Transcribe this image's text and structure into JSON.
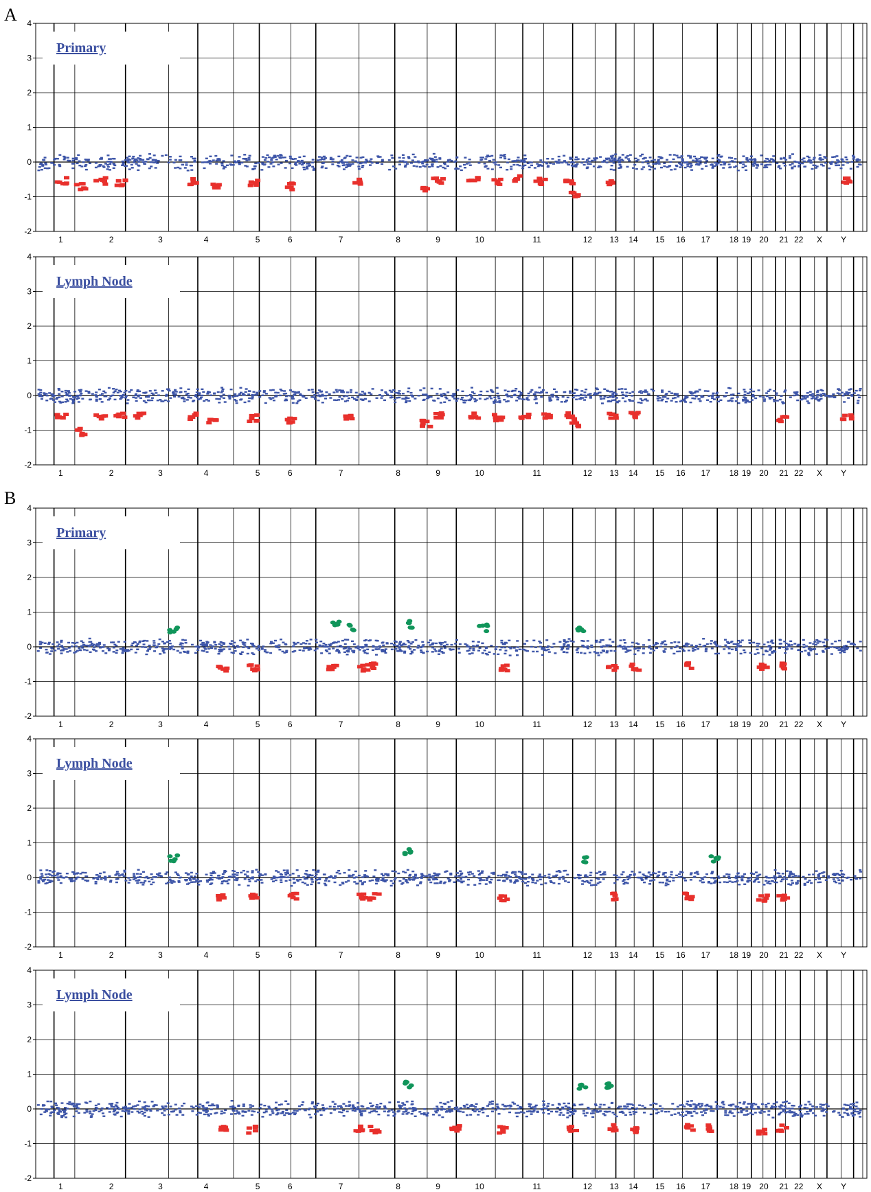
{
  "figure": {
    "panel_labels": [
      "A",
      "B"
    ]
  },
  "chromosomes": [
    "1",
    "2",
    "3",
    "4",
    "5",
    "6",
    "7",
    "8",
    "9",
    "10",
    "11",
    "12",
    "13",
    "14",
    "15",
    "16",
    "17",
    "18",
    "19",
    "20",
    "21",
    "22",
    "X",
    "Y"
  ],
  "colors": {
    "normal": "#3d55a8",
    "loss": "#e8302c",
    "gain": "#10955a",
    "axis": "#000000"
  },
  "chart_data": [
    {
      "type": "scatter",
      "panel": "A",
      "title": "Primary",
      "ylim": [
        -2,
        4
      ],
      "yticks": [
        -2,
        -1,
        0,
        1,
        2,
        3,
        4
      ],
      "x_categories": [
        "1",
        "2",
        "3",
        "4",
        "5",
        "6",
        "7",
        "8",
        "9",
        "10",
        "11",
        "12",
        "13",
        "14",
        "15",
        "16",
        "17",
        "18",
        "19",
        "20",
        "21",
        "22",
        "X",
        "Y"
      ],
      "grid": true,
      "losses": [
        {
          "chr": "1",
          "pos": 0.5,
          "value": -0.55
        },
        {
          "chr": "1",
          "pos": 0.9,
          "value": -0.7
        },
        {
          "chr": "2",
          "pos": 0.3,
          "value": -0.55
        },
        {
          "chr": "2",
          "pos": 0.7,
          "value": -0.6
        },
        {
          "chr": "4",
          "pos": 0.2,
          "value": -0.55
        },
        {
          "chr": "4",
          "pos": 0.7,
          "value": -0.65
        },
        {
          "chr": "5",
          "pos": 0.5,
          "value": -0.6
        },
        {
          "chr": "6",
          "pos": 0.4,
          "value": -0.7
        },
        {
          "chr": "7",
          "pos": 0.8,
          "value": -0.55
        },
        {
          "chr": "9",
          "pos": 0.2,
          "value": -0.75
        },
        {
          "chr": "9",
          "pos": 0.5,
          "value": -0.55
        },
        {
          "chr": "10",
          "pos": 0.3,
          "value": -0.55
        },
        {
          "chr": "10",
          "pos": 0.8,
          "value": -0.6
        },
        {
          "chr": "11",
          "pos": 0.2,
          "value": -0.5
        },
        {
          "chr": "11",
          "pos": 0.6,
          "value": -0.55
        },
        {
          "chr": "12",
          "pos": 0.2,
          "value": -0.55
        },
        {
          "chr": "12",
          "pos": 0.3,
          "value": -0.9
        },
        {
          "chr": "13",
          "pos": 0.5,
          "value": -0.55
        },
        {
          "chr": "Y",
          "pos": 0.5,
          "value": -0.55
        }
      ],
      "gains": []
    },
    {
      "type": "scatter",
      "panel": "A",
      "title": "Lymph Node",
      "ylim": [
        -2,
        4
      ],
      "yticks": [
        -2,
        -1,
        0,
        1,
        2,
        3,
        4
      ],
      "x_categories": [
        "1",
        "2",
        "3",
        "4",
        "5",
        "6",
        "7",
        "8",
        "9",
        "10",
        "11",
        "12",
        "13",
        "14",
        "15",
        "16",
        "17",
        "18",
        "19",
        "20",
        "21",
        "22",
        "X",
        "Y"
      ],
      "grid": true,
      "losses": [
        {
          "chr": "1",
          "pos": 0.5,
          "value": -0.6
        },
        {
          "chr": "1",
          "pos": 0.9,
          "value": -1.05
        },
        {
          "chr": "2",
          "pos": 0.3,
          "value": -0.6
        },
        {
          "chr": "2",
          "pos": 0.7,
          "value": -0.6
        },
        {
          "chr": "3",
          "pos": 0.1,
          "value": -0.6
        },
        {
          "chr": "4",
          "pos": 0.2,
          "value": -0.6
        },
        {
          "chr": "4",
          "pos": 0.6,
          "value": -0.7
        },
        {
          "chr": "5",
          "pos": 0.5,
          "value": -0.65
        },
        {
          "chr": "6",
          "pos": 0.4,
          "value": -0.7
        },
        {
          "chr": "7",
          "pos": 0.6,
          "value": -0.6
        },
        {
          "chr": "9",
          "pos": 0.2,
          "value": -0.8
        },
        {
          "chr": "9",
          "pos": 0.5,
          "value": -0.55
        },
        {
          "chr": "10",
          "pos": 0.3,
          "value": -0.6
        },
        {
          "chr": "10",
          "pos": 0.8,
          "value": -0.65
        },
        {
          "chr": "11",
          "pos": 0.3,
          "value": -0.6
        },
        {
          "chr": "11",
          "pos": 0.7,
          "value": -0.6
        },
        {
          "chr": "12",
          "pos": 0.2,
          "value": -0.6
        },
        {
          "chr": "12",
          "pos": 0.3,
          "value": -0.8
        },
        {
          "chr": "13",
          "pos": 0.5,
          "value": -0.6
        },
        {
          "chr": "14",
          "pos": 0.5,
          "value": -0.55
        },
        {
          "chr": "21",
          "pos": 0.5,
          "value": -0.65
        },
        {
          "chr": "Y",
          "pos": 0.5,
          "value": -0.65
        }
      ],
      "gains": []
    },
    {
      "type": "scatter",
      "panel": "B",
      "title": "Primary",
      "ylim": [
        -2,
        4
      ],
      "yticks": [
        -2,
        -1,
        0,
        1,
        2,
        3,
        4
      ],
      "x_categories": [
        "1",
        "2",
        "3",
        "4",
        "5",
        "6",
        "7",
        "8",
        "9",
        "10",
        "11",
        "12",
        "13",
        "14",
        "15",
        "16",
        "17",
        "18",
        "19",
        "20",
        "21",
        "22",
        "X",
        "Y"
      ],
      "grid": true,
      "losses": [
        {
          "chr": "4",
          "pos": 0.8,
          "value": -0.6
        },
        {
          "chr": "5",
          "pos": 0.5,
          "value": -0.6
        },
        {
          "chr": "7",
          "pos": 0.3,
          "value": -0.6
        },
        {
          "chr": "7",
          "pos": 0.9,
          "value": -0.6
        },
        {
          "chr": "8",
          "pos": 0.1,
          "value": -0.55
        },
        {
          "chr": "10",
          "pos": 0.9,
          "value": -0.6
        },
        {
          "chr": "13",
          "pos": 0.5,
          "value": -0.6
        },
        {
          "chr": "14",
          "pos": 0.5,
          "value": -0.6
        },
        {
          "chr": "16",
          "pos": 0.8,
          "value": -0.55
        },
        {
          "chr": "20",
          "pos": 0.4,
          "value": -0.6
        },
        {
          "chr": "21",
          "pos": 0.5,
          "value": -0.55
        }
      ],
      "gains": [
        {
          "chr": "3",
          "pos": 0.8,
          "value": 0.5
        },
        {
          "chr": "7",
          "pos": 0.4,
          "value": 0.7
        },
        {
          "chr": "7",
          "pos": 0.7,
          "value": 0.55
        },
        {
          "chr": "8",
          "pos": 0.8,
          "value": 0.65
        },
        {
          "chr": "10",
          "pos": 0.5,
          "value": 0.55
        },
        {
          "chr": "12",
          "pos": 0.5,
          "value": 0.55
        }
      ]
    },
    {
      "type": "scatter",
      "panel": "B",
      "title": "Lymph Node",
      "ylim": [
        -2,
        4
      ],
      "yticks": [
        -2,
        -1,
        0,
        1,
        2,
        3,
        4
      ],
      "x_categories": [
        "1",
        "2",
        "3",
        "4",
        "5",
        "6",
        "7",
        "8",
        "9",
        "10",
        "11",
        "12",
        "13",
        "14",
        "15",
        "16",
        "17",
        "18",
        "19",
        "20",
        "21",
        "22",
        "X",
        "Y"
      ],
      "grid": true,
      "losses": [
        {
          "chr": "4",
          "pos": 0.8,
          "value": -0.55
        },
        {
          "chr": "5",
          "pos": 0.5,
          "value": -0.55
        },
        {
          "chr": "6",
          "pos": 0.5,
          "value": -0.55
        },
        {
          "chr": "7",
          "pos": 0.9,
          "value": -0.55
        },
        {
          "chr": "8",
          "pos": 0.1,
          "value": -0.55
        },
        {
          "chr": "10",
          "pos": 0.9,
          "value": -0.6
        },
        {
          "chr": "13",
          "pos": 0.5,
          "value": -0.55
        },
        {
          "chr": "16",
          "pos": 0.8,
          "value": -0.55
        },
        {
          "chr": "20",
          "pos": 0.4,
          "value": -0.6
        },
        {
          "chr": "21",
          "pos": 0.5,
          "value": -0.55
        }
      ],
      "gains": [
        {
          "chr": "3",
          "pos": 0.8,
          "value": 0.55
        },
        {
          "chr": "8",
          "pos": 0.8,
          "value": 0.75
        },
        {
          "chr": "12",
          "pos": 0.6,
          "value": 0.5
        },
        {
          "chr": "17",
          "pos": 0.8,
          "value": 0.55
        }
      ]
    },
    {
      "type": "scatter",
      "panel": "B",
      "title": "Lymph Node",
      "ylim": [
        -2,
        4
      ],
      "yticks": [
        -2,
        -1,
        0,
        1,
        2,
        3,
        4
      ],
      "x_categories": [
        "1",
        "2",
        "3",
        "4",
        "5",
        "6",
        "7",
        "8",
        "9",
        "10",
        "11",
        "12",
        "13",
        "14",
        "15",
        "16",
        "17",
        "18",
        "19",
        "20",
        "21",
        "22",
        "X",
        "Y"
      ],
      "grid": true,
      "losses": [
        {
          "chr": "4",
          "pos": 0.8,
          "value": -0.6
        },
        {
          "chr": "5",
          "pos": 0.5,
          "value": -0.6
        },
        {
          "chr": "7",
          "pos": 0.8,
          "value": -0.55
        },
        {
          "chr": "8",
          "pos": 0.1,
          "value": -0.6
        },
        {
          "chr": "9",
          "pos": 0.9,
          "value": -0.55
        },
        {
          "chr": "10",
          "pos": 0.9,
          "value": -0.6
        },
        {
          "chr": "12",
          "pos": 0.3,
          "value": -0.55
        },
        {
          "chr": "13",
          "pos": 0.5,
          "value": -0.55
        },
        {
          "chr": "14",
          "pos": 0.5,
          "value": -0.6
        },
        {
          "chr": "16",
          "pos": 0.8,
          "value": -0.55
        },
        {
          "chr": "17",
          "pos": 0.6,
          "value": -0.55
        },
        {
          "chr": "20",
          "pos": 0.4,
          "value": -0.65
        },
        {
          "chr": "21",
          "pos": 0.5,
          "value": -0.55
        }
      ],
      "gains": [
        {
          "chr": "8",
          "pos": 0.8,
          "value": 0.7
        },
        {
          "chr": "12",
          "pos": 0.5,
          "value": 0.65
        },
        {
          "chr": "13",
          "pos": 0.3,
          "value": 0.65
        }
      ]
    }
  ]
}
